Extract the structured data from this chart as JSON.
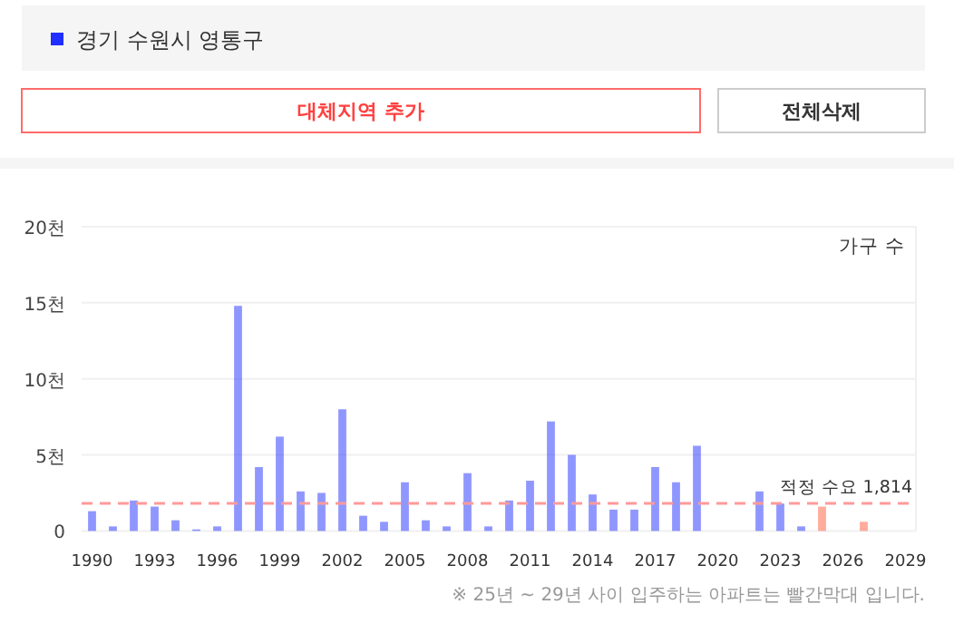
{
  "chart_data": {
    "type": "bar",
    "categories": [
      "1990",
      null,
      null,
      "1993",
      null,
      null,
      "1996",
      null,
      null,
      "1999",
      null,
      null,
      "2002",
      null,
      null,
      "2005",
      null,
      null,
      "2008",
      null,
      null,
      "2011",
      null,
      null,
      "2014",
      null,
      null,
      "2017",
      null,
      null,
      "2020",
      null,
      null,
      "2023",
      null,
      null,
      "2026",
      null,
      null,
      "2029"
    ],
    "series": [
      {
        "name": "경기 수원시 영통구",
        "color": "#1f2fff",
        "values": [
          1.3,
          0.3,
          2.0,
          1.6,
          0.7,
          0.1,
          0.3,
          14.8,
          4.2,
          6.2,
          2.6,
          2.5,
          8.0,
          1.0,
          0.6,
          3.2,
          0.7,
          0.3,
          3.8,
          0.3,
          2.0,
          3.3,
          7.2,
          5.0,
          2.4,
          1.4,
          1.4,
          4.2,
          3.2,
          5.6,
          0,
          0,
          2.6,
          1.8,
          0.3,
          1.6,
          0,
          0.6,
          0,
          0
        ],
        "colors": [
          "#1f2fff",
          "#1f2fff",
          "#1f2fff",
          "#1f2fff",
          "#1f2fff",
          "#1f2fff",
          "#1f2fff",
          "#1f2fff",
          "#1f2fff",
          "#1f2fff",
          "#1f2fff",
          "#1f2fff",
          "#1f2fff",
          "#1f2fff",
          "#1f2fff",
          "#1f2fff",
          "#1f2fff",
          "#1f2fff",
          "#1f2fff",
          "#1f2fff",
          "#1f2fff",
          "#1f2fff",
          "#1f2fff",
          "#1f2fff",
          "#1f2fff",
          "#1f2fff",
          "#1f2fff",
          "#1f2fff",
          "#1f2fff",
          "#1f2fff",
          "#1f2fff",
          "#1f2fff",
          "#1f2fff",
          "#1f2fff",
          "#1f2fff",
          "#ff5a3c",
          "#ff5a3c",
          "#ff5a3c",
          "#ff5a3c",
          "#ff5a3c"
        ]
      }
    ],
    "ylabel": "가구 수",
    "ylim": [
      0,
      20
    ],
    "yticks": [
      0,
      {
        "value": 5,
        "label": "5천"
      },
      {
        "value": 10,
        "label": "10천"
      },
      {
        "value": 15,
        "label": "15천"
      },
      {
        "value": 20,
        "label": "20천"
      }
    ],
    "grid": "y",
    "legend": "top left",
    "ref_lines": [
      {
        "axis": "y",
        "value": 1.814,
        "label": "적정 수요 1,814",
        "color": "#ff9a9a",
        "line_style": "dashed"
      }
    ],
    "annotations": [
      "대체지역 추가",
      "전체삭제",
      "※ 25년 ~ 29년 사이 입주하는 아파트는 빨간막대 입니다."
    ]
  }
}
